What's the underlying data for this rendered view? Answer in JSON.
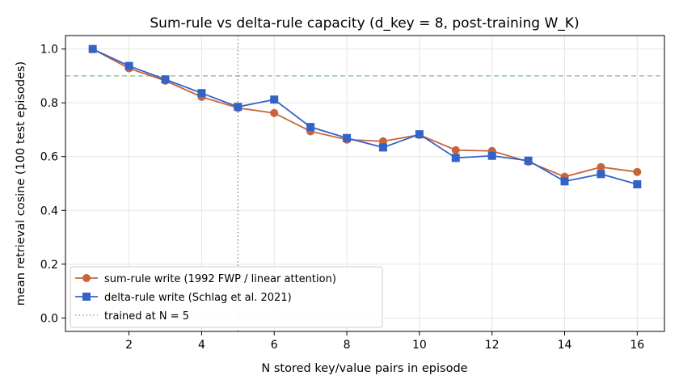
{
  "chart_data": {
    "type": "line",
    "title": "Sum-rule vs delta-rule capacity (d_key = 8, post-training W_K)",
    "xlabel": "N stored key/value pairs in episode",
    "ylabel": "mean retrieval cosine (100 test episodes)",
    "xlim": [
      0.25,
      16.75
    ],
    "ylim": [
      -0.05,
      1.05
    ],
    "x_ticks": [
      2,
      4,
      6,
      8,
      10,
      12,
      14,
      16
    ],
    "y_ticks": [
      0.0,
      0.2,
      0.4,
      0.6,
      0.8,
      1.0
    ],
    "y_tick_labels": [
      "0.0",
      "0.2",
      "0.4",
      "0.6",
      "0.8",
      "1.0"
    ],
    "grid": true,
    "x": [
      1,
      2,
      3,
      4,
      5,
      6,
      7,
      8,
      9,
      10,
      11,
      12,
      13,
      14,
      15,
      16
    ],
    "series": [
      {
        "name": "sum-rule write (1992 FWP / linear attention)",
        "color": "#c8643a",
        "marker": "circle",
        "values": [
          1.0,
          0.928,
          0.882,
          0.822,
          0.781,
          0.762,
          0.694,
          0.663,
          0.657,
          0.681,
          0.624,
          0.621,
          0.581,
          0.525,
          0.561,
          0.543
        ]
      },
      {
        "name": "delta-rule write (Schlag et al. 2021)",
        "color": "#3463c6",
        "marker": "square",
        "values": [
          1.0,
          0.937,
          0.887,
          0.836,
          0.785,
          0.812,
          0.71,
          0.669,
          0.634,
          0.683,
          0.595,
          0.603,
          0.585,
          0.508,
          0.535,
          0.497
        ]
      }
    ],
    "reference_lines": [
      {
        "orientation": "horizontal",
        "value": 0.9,
        "color": "#7fbf7f",
        "style": "dashed",
        "label": ""
      },
      {
        "orientation": "vertical",
        "value": 5,
        "color": "#888888",
        "style": "dotted",
        "label": "trained at N = 5"
      }
    ],
    "legend": {
      "placement": "lower-left"
    }
  }
}
